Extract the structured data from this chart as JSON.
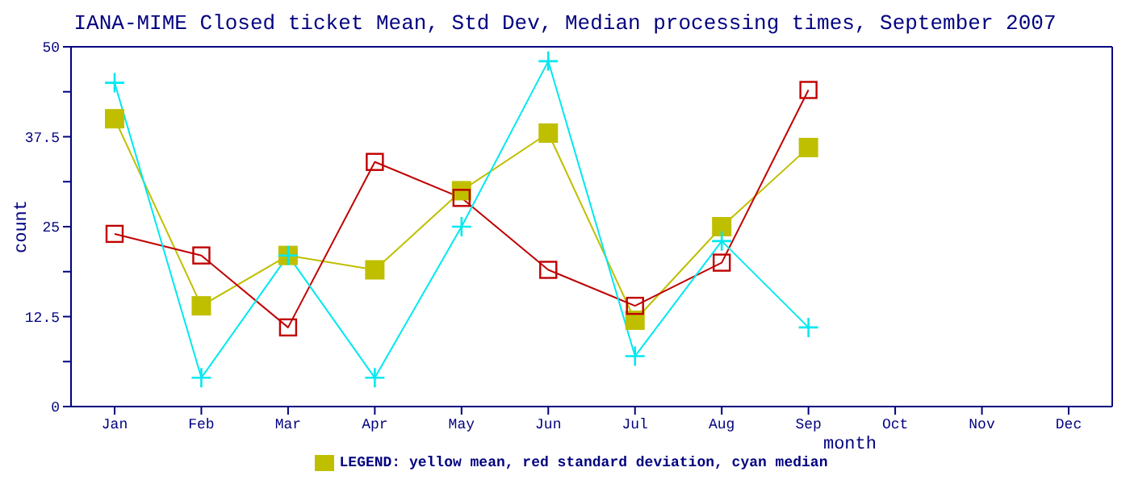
{
  "chart_data": {
    "type": "line",
    "title": "IANA-MIME Closed ticket Mean, Std Dev, Median processing times, September 2007",
    "xlabel": "month",
    "ylabel": "count",
    "categories": [
      "Jan",
      "Feb",
      "Mar",
      "Apr",
      "May",
      "Jun",
      "Jul",
      "Aug",
      "Sep",
      "Oct",
      "Nov",
      "Dec"
    ],
    "series": [
      {
        "name": "LEGEND: yellow mean, red standard deviation, cyan median",
        "color": "#bfbf00",
        "marker": "square",
        "values": [
          40,
          14,
          21,
          19,
          30,
          38,
          12,
          25,
          36,
          null,
          null,
          null
        ]
      },
      {
        "color": "#c00000",
        "marker": "square",
        "values": [
          24,
          21,
          11,
          34,
          29,
          19,
          14,
          20,
          44,
          null,
          null,
          null
        ]
      },
      {
        "color": "#00e8f0",
        "marker": "cross",
        "values": [
          45,
          4,
          21,
          4,
          25,
          48,
          7,
          23,
          11,
          null,
          null,
          null
        ]
      }
    ],
    "ylim": [
      0,
      50
    ],
    "yticks": [
      0,
      {
        "value": 6.25,
        "label": null
      },
      12.5,
      {
        "value": 18.75,
        "label": null
      },
      25,
      {
        "value": 31.25,
        "label": null
      },
      37.5,
      {
        "value": 43.75,
        "label": null
      },
      50
    ],
    "grid": false,
    "legend": "bottom"
  }
}
